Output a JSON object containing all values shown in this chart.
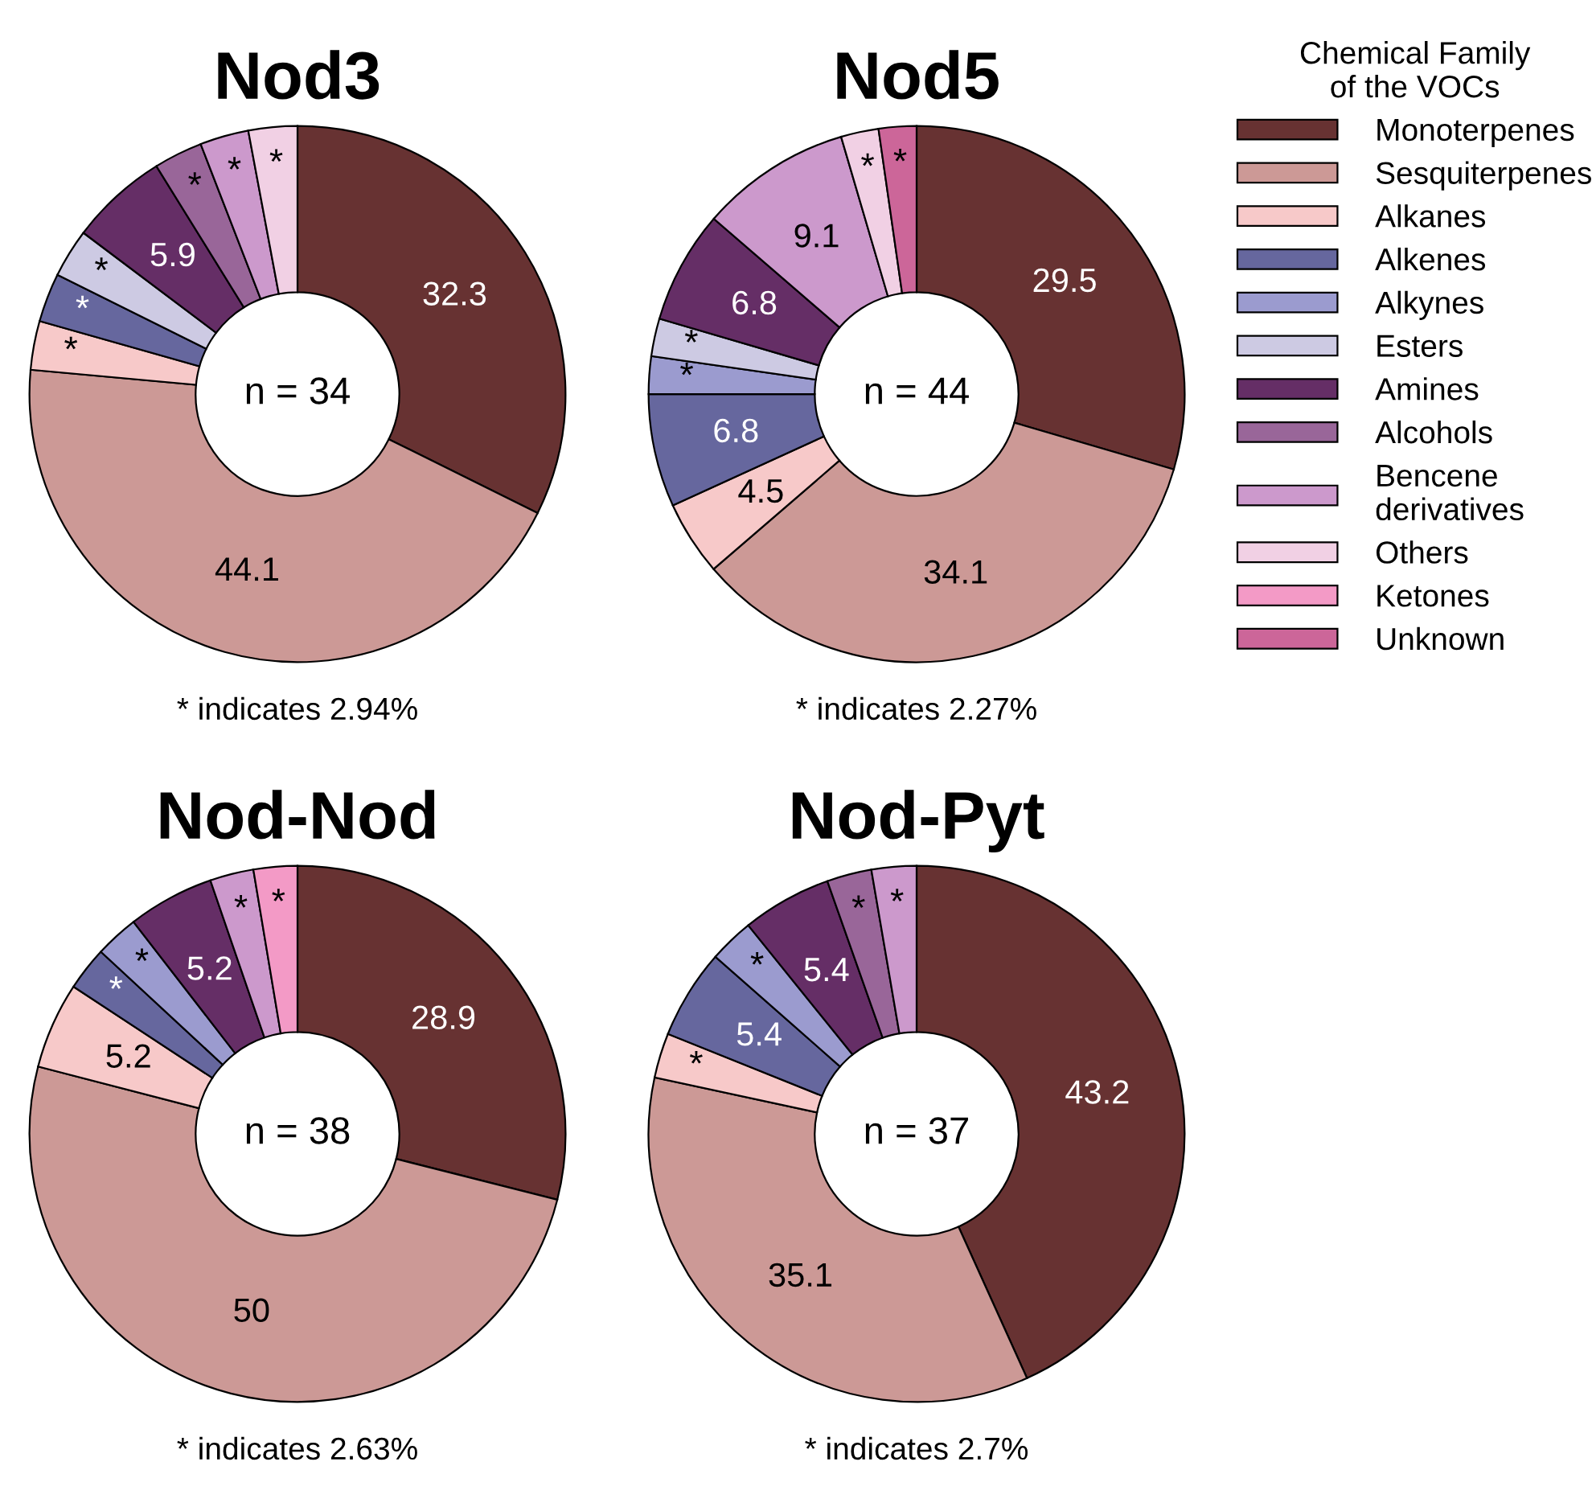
{
  "chart_data": [
    {
      "type": "donut",
      "title": "Nod3",
      "legend": "right",
      "legend_title": "Chemical Family\nof the VOCs",
      "categories": [
        "Monoterpenes",
        "Sesquiterpenes",
        "Alkanes",
        "Alkenes",
        "Alkynes",
        "Esters",
        "Amines",
        "Alcohols",
        "Bencene\nderivatives",
        "Others",
        "Ketones",
        "Unknown"
      ],
      "colors": [
        "#673232",
        "#cc9996",
        "#f7c9c9",
        "#66679e",
        "#9b9bcf",
        "#cdcae3",
        "#652e66",
        "#996699",
        "#cc99cc",
        "#f1d0e4",
        "#f39ac6",
        "#cc6699"
      ],
      "values": [
        32.3,
        44.1,
        2.94,
        2.94,
        null,
        2.94,
        5.9,
        2.94,
        2.94,
        2.94,
        null,
        null
      ],
      "value_labels": [
        "32.3",
        "44.1",
        "*",
        "*",
        null,
        "*",
        "5.9",
        "*",
        "*",
        "*",
        null,
        null
      ],
      "annotations": [
        "n = 34",
        "* indicates 2.94%"
      ]
    },
    {
      "type": "donut",
      "title": "Nod5",
      "categories": [
        null,
        null,
        null,
        null,
        null,
        null,
        null,
        null,
        null,
        null,
        null,
        null
      ],
      "colors": [
        "#673232",
        "#cc9996",
        "#f7c9c9",
        "#66679e",
        "#9b9bcf",
        "#cdcae3",
        "#652e66",
        "#996699",
        "#cc99cc",
        "#f1d0e4",
        "#f39ac6",
        "#cc6699"
      ],
      "values": [
        29.5,
        34.1,
        4.5,
        6.8,
        2.27,
        2.27,
        6.8,
        null,
        9.1,
        2.27,
        null,
        2.27
      ],
      "value_labels": [
        "29.5",
        "34.1",
        "4.5",
        "6.8",
        "*",
        "*",
        "6.8",
        null,
        "9.1",
        "*",
        null,
        "*"
      ],
      "annotations": [
        "n = 44",
        "* indicates 2.27%"
      ]
    },
    {
      "type": "donut",
      "title": "Nod-Nod",
      "categories": [
        null,
        null,
        null,
        null,
        null,
        null,
        null,
        null,
        null,
        null,
        null,
        null
      ],
      "colors": [
        "#673232",
        "#cc9996",
        "#f7c9c9",
        "#66679e",
        "#9b9bcf",
        "#cdcae3",
        "#652e66",
        "#996699",
        "#cc99cc",
        "#f1d0e4",
        "#f39ac6",
        "#cc6699"
      ],
      "values": [
        28.9,
        50,
        5.2,
        2.63,
        2.63,
        null,
        5.2,
        null,
        2.63,
        null,
        2.63,
        null
      ],
      "value_labels": [
        "28.9",
        "50",
        "5.2",
        "*",
        "*",
        null,
        "5.2",
        null,
        "*",
        null,
        "*",
        null
      ],
      "annotations": [
        "n = 38",
        "* indicates 2.63%"
      ]
    },
    {
      "type": "donut",
      "title": "Nod-Pyt",
      "categories": [
        null,
        null,
        null,
        null,
        null,
        null,
        null,
        null,
        null,
        null,
        null,
        null
      ],
      "colors": [
        "#673232",
        "#cc9996",
        "#f7c9c9",
        "#66679e",
        "#9b9bcf",
        "#cdcae3",
        "#652e66",
        "#996699",
        "#cc99cc",
        "#f1d0e4",
        "#f39ac6",
        "#cc6699"
      ],
      "values": [
        43.2,
        35.1,
        2.7,
        5.4,
        2.7,
        null,
        5.4,
        2.7,
        2.7,
        null,
        null,
        null
      ],
      "value_labels": [
        "43.2",
        "35.1",
        "*",
        "5.4",
        "*",
        null,
        "5.4",
        "*",
        "*",
        null,
        null,
        null
      ],
      "annotations": [
        "n = 37",
        "* indicates 2.7%"
      ]
    }
  ]
}
